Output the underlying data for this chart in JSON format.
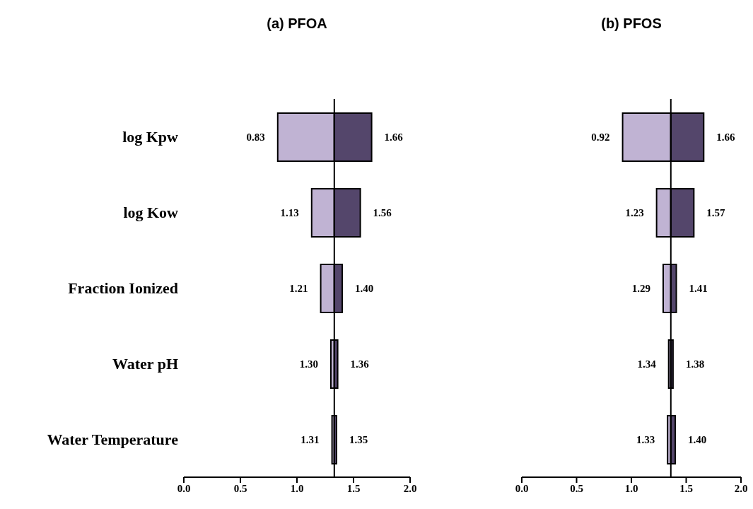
{
  "chart_data": [
    {
      "type": "bar",
      "orientation": "horizontal",
      "title": "(a) PFOA",
      "categories": [
        "log Kpw",
        "log Kow",
        "Fraction Ionized",
        "Water pH",
        "Water Temperature"
      ],
      "series": [
        {
          "color": "#c0b3d3",
          "base": [
            0.83,
            1.13,
            1.21,
            1.3,
            1.31
          ],
          "values": [
            0.5,
            0.2,
            0.12,
            0.03,
            0.02
          ]
        },
        {
          "color": "#54466b",
          "base": [
            1.33,
            1.33,
            1.33,
            1.33,
            1.33
          ],
          "values": [
            0.33,
            0.23,
            0.07,
            0.03,
            0.02
          ]
        }
      ],
      "annotations": [
        {
          "text": "0.83",
          "x": 0.83,
          "y": "log Kpw"
        },
        {
          "text": "1.66",
          "x": 1.66,
          "y": "log Kpw"
        },
        {
          "text": "1.13",
          "x": 1.13,
          "y": "log Kow"
        },
        {
          "text": "1.56",
          "x": 1.56,
          "y": "log Kow"
        },
        {
          "text": "1.21",
          "x": 1.21,
          "y": "Fraction Ionized"
        },
        {
          "text": "1.40",
          "x": 1.4,
          "y": "Fraction Ionized"
        },
        {
          "text": "1.30",
          "x": 1.3,
          "y": "Water pH"
        },
        {
          "text": "1.36",
          "x": 1.36,
          "y": "Water pH"
        },
        {
          "text": "1.31",
          "x": 1.31,
          "y": "Water Temperature"
        },
        {
          "text": "1.35",
          "x": 1.35,
          "y": "Water Temperature"
        }
      ],
      "xlim": [
        0,
        2
      ],
      "xticks": [
        {
          "value": 0,
          "label": "0.0"
        },
        {
          "value": 0.5,
          "label": "0.5"
        },
        {
          "value": 1,
          "label": "1.0"
        },
        {
          "value": 1.5,
          "label": "1.5"
        },
        {
          "value": 2,
          "label": "2.0"
        }
      ],
      "ref_lines": [
        {
          "axis": "x",
          "value": 1.33,
          "color": "#000000"
        }
      ]
    },
    {
      "type": "bar",
      "orientation": "horizontal",
      "title": "(b) PFOS",
      "categories": [
        null,
        null,
        null,
        null,
        null
      ],
      "tick_labels": "x",
      "series": [
        {
          "color": "#c0b3d3",
          "base": [
            0.92,
            1.23,
            1.29,
            1.34,
            1.33
          ],
          "values": [
            0.44,
            0.13,
            0.07,
            0.02,
            0.03
          ]
        },
        {
          "color": "#54466b",
          "base": [
            1.36,
            1.36,
            1.36,
            1.36,
            1.36
          ],
          "values": [
            0.3,
            0.21,
            0.05,
            0.02,
            0.04
          ]
        }
      ],
      "annotations": [
        {
          "text": "0.92",
          "x": 0.92
        },
        {
          "text": "1.66",
          "x": 1.66
        },
        {
          "text": "1.23",
          "x": 1.23
        },
        {
          "text": "1.57",
          "x": 1.57
        },
        {
          "text": "1.29",
          "x": 1.29
        },
        {
          "text": "1.41",
          "x": 1.41
        },
        {
          "text": "1.34",
          "x": 1.34
        },
        {
          "text": "1.38",
          "x": 1.38
        },
        {
          "text": "1.33",
          "x": 1.33
        },
        {
          "text": "1.40",
          "x": 1.4
        }
      ],
      "xlim": [
        0,
        2
      ],
      "xticks": [
        {
          "value": 0,
          "label": "0.0"
        },
        {
          "value": 0.5,
          "label": "0.5"
        },
        {
          "value": 1,
          "label": "1.0"
        },
        {
          "value": 1.5,
          "label": "1.5"
        },
        {
          "value": 2,
          "label": "2.0"
        }
      ],
      "ref_lines": [
        {
          "axis": "x",
          "value": 1.36,
          "color": "#000000"
        }
      ]
    }
  ]
}
